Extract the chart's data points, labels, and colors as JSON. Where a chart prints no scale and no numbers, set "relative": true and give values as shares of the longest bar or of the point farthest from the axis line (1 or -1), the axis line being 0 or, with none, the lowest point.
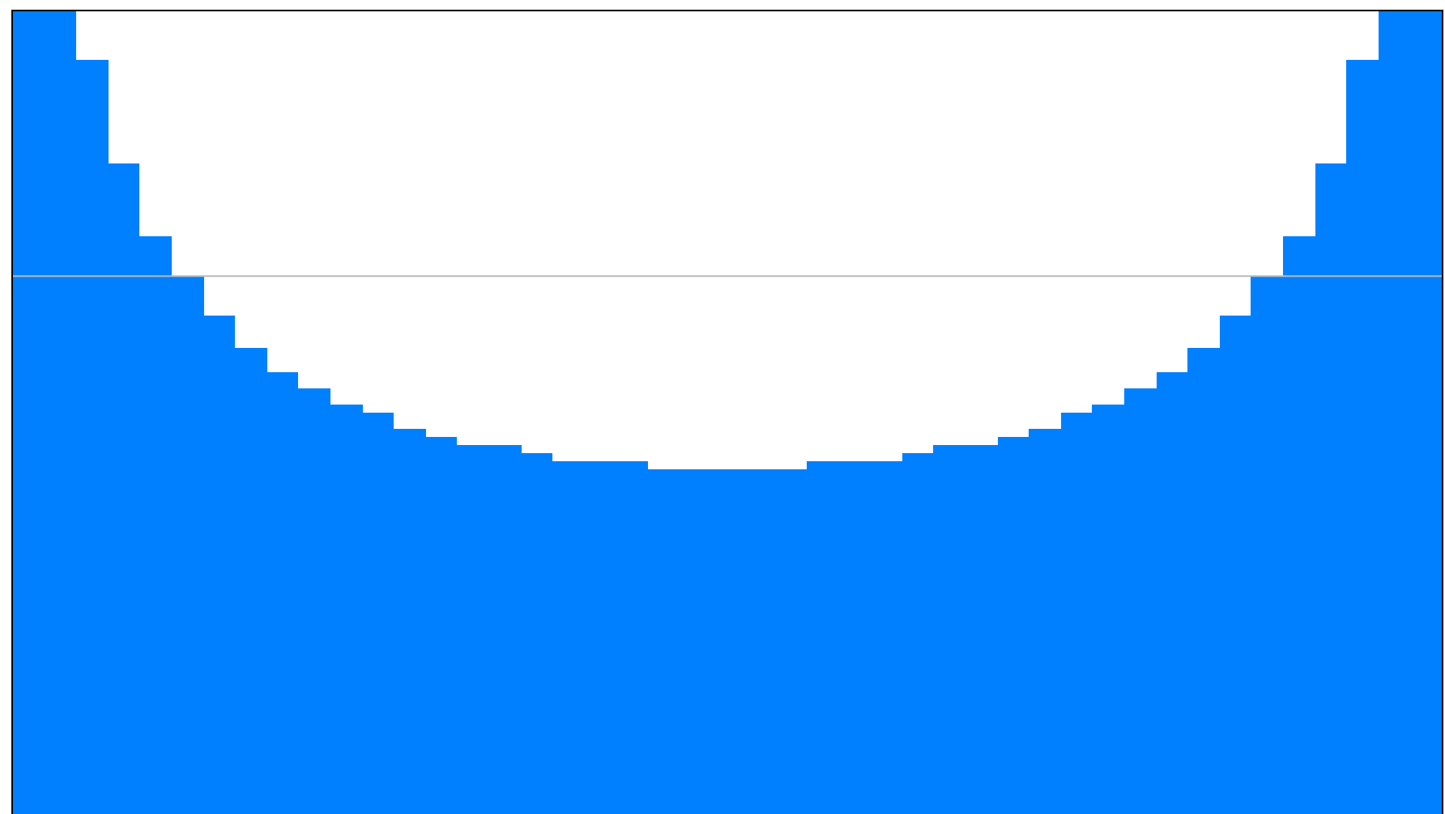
{
  "chart_data": {
    "type": "bar",
    "relative": true,
    "color": "#0080ff",
    "categories": [
      null,
      null,
      null,
      null,
      null,
      null,
      null,
      null,
      null,
      null,
      null,
      null,
      null,
      null,
      null,
      null,
      null,
      null,
      null,
      null,
      null,
      null,
      null,
      null,
      null,
      null,
      null,
      null,
      null,
      null,
      null,
      null,
      null,
      null,
      null,
      null,
      null,
      null,
      null,
      null,
      null,
      null,
      null,
      null,
      null
    ],
    "values": [
      1,
      1,
      0.94,
      0.81,
      0.72,
      0.67,
      0.62,
      0.58,
      0.55,
      0.53,
      0.51,
      0.5,
      0.48,
      0.47,
      0.46,
      0.46,
      0.45,
      0.44,
      0.44,
      0.44,
      0.43,
      0.43,
      0.43,
      0.43,
      0.43,
      0.44,
      0.44,
      0.44,
      0.45,
      0.46,
      0.46,
      0.47,
      0.48,
      0.5,
      0.51,
      0.53,
      0.55,
      0.58,
      0.62,
      0.67,
      0.72,
      0.81,
      0.94,
      1,
      1
    ],
    "ref_lines": [
      {
        "axis": "y",
        "value": 0.67,
        "color": "#bbbbbb"
      }
    ]
  }
}
